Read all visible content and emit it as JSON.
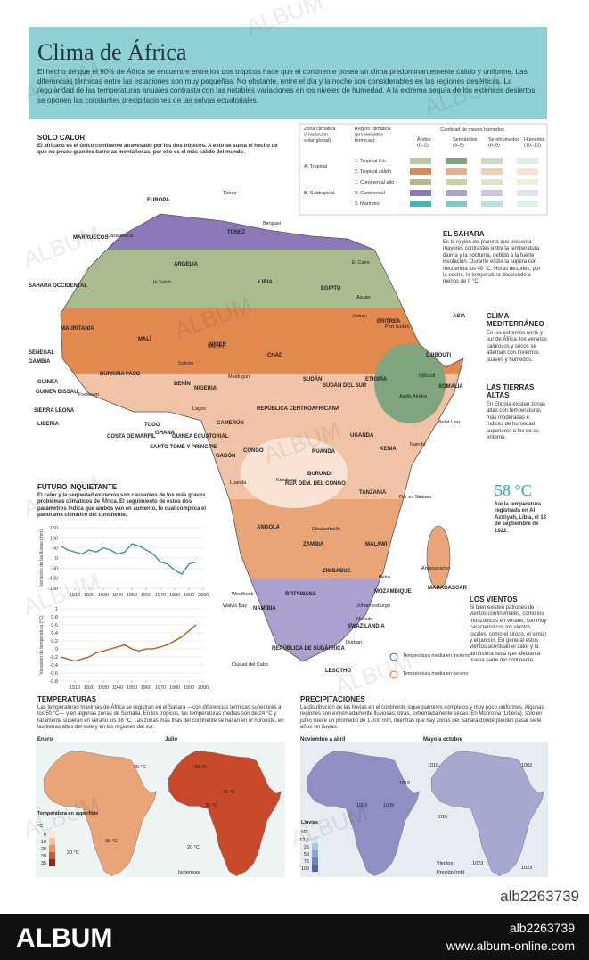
{
  "header": {
    "title": "Clima de África",
    "intro": "El hecho de que el 90% de África se encuentre entre los dos trópicos hace que el continente posea un clima predominantemente cálido y uniforme. Las diferencias térmicas entre las estaciones son muy pequeñas. No obstante, entre el día y la noche son considerables en las regiones desérticas. La regularidad de las temperaturas anuales contrasta con las notables variaciones en los niveles de humedad. A la extrema sequía de los extensos desiertos se oponen las constantes precipitaciones de las selvas ecuatoriales."
  },
  "sections": {
    "solo_calor": {
      "title": "SÓLO CALOR",
      "text": "El africano es el único continente atravesado por los dos trópicos. A esto se suma el hecho de que no posee grandes barreras montañosas, por ello es el más cálido del mundo."
    },
    "sahara": {
      "title": "EL SAHARA",
      "text": "Es la región del planeta que presenta mayores contrastes entre la temperatura diurna y la nocturna, debido a la fuerte insolación. Durante el día la supera con frecuencia los 40 °C. Horas después, por la noche, la temperatura desciende a menos de 0 °C."
    },
    "mediterraneo": {
      "title": "CLIMA MEDITERRÁNEO",
      "text": "En los extremos norte y sur de África, los veranos calurosos y secos se alternan con inviernos suaves y húmedos."
    },
    "tierras_altas": {
      "title": "LAS TIERRAS ALTAS",
      "text": "En Etiopía existen zonas altas con temperaturas más moderadas e índices de humedad superiores a los de su entorno."
    },
    "record": {
      "value": "58 °C",
      "text": "fue la temperatura registrada en Al Aziziyah, Libia, el 13 de septiembre de 1922."
    },
    "vientos": {
      "title": "LOS VIENTOS",
      "text": "Si bien existen patrones de vientos continentales, como los monzónicos en verano, son muy característicos los vientos locales, como el siroco, el simún y el jamsín. En general estos vientos acentúan el calor y la atmósfera seca que afectan a buena parte del continente."
    },
    "futuro": {
      "title": "FUTURO INQUIETANTE",
      "text": "El calor y la sequedad extremos son causantes de los más graves problemas climáticos de África. El seguimiento de estos dos parámetros indica que ambos van en aumento, lo cual complica el panorama climático del continente."
    },
    "temperaturas": {
      "title": "TEMPERATURAS",
      "text": "Las temperaturas máximas de África se registran en el Sahara —con diferencias térmicas superiores a los 50 °C— y en algunas zonas de Somalia. En los trópicos, las temperaturas medias son de 24 °C y raramente superan en verano los 38 °C. Las zonas más frías del continente se hallan en el noroeste, en las tierras altas del este y en las regiones del sur."
    },
    "precipitaciones": {
      "title": "PRECIPITACIONES",
      "text": "La distribución de las lluvias en el continente sigue patrones complejos y muy poco uniformes. Algunas regiones son extremadamente lluviosas; otras, extremadamente secas. En Monrovia (Liberia), sólo en junio llueve un promedio de 1.000 mm, mientras que hay zonas del Sahara donde pueden pasar siete años sin lluvias."
    }
  },
  "legend": {
    "col1": "Zona climática (irradiación solar global)",
    "col2": "Región climática (propiedades térmicas)",
    "group": "Cantidad de meses húmedos",
    "cols": [
      "Áridos (0–2)",
      "Semiáridos (3–5)",
      "Semihúmedos (6–9)",
      "Húmedos (10–12)"
    ],
    "zones": [
      "A. Tropical",
      "B. Subtropical"
    ],
    "rows": [
      {
        "name": "1. Tropical frío",
        "colors": [
          "#b8c9a6",
          "#7fa57f",
          "#c9dcc4",
          "#e4ede2"
        ]
      },
      {
        "name": "2. Tropical cálido",
        "colors": [
          "#e2894f",
          "#eeae84",
          "#f3cdb0",
          "#f8e3d5"
        ]
      },
      {
        "name": "1. Continental alto",
        "colors": [
          "#b7b77e",
          "#cfcf9f",
          "#e3e1c6",
          "#efeee0"
        ]
      },
      {
        "name": "2. Continental",
        "colors": [
          "#8a78b8",
          "#ad9fd0",
          "#cfc6e4",
          "#e6e1f1"
        ]
      },
      {
        "name": "3. Marítimo",
        "colors": [
          "#3fb7b3",
          "#7ccdc9",
          "#b5e3e0",
          "#dcf2f0"
        ]
      }
    ],
    "winter": "Temperatura media en invierno",
    "summer": "Temperatura media en verano"
  },
  "map_labels": [
    "EUROPA",
    "Túnez",
    "TÚNEZ",
    "Bengasi",
    "MARRUECOS",
    "Casablanca",
    "ARGELIA",
    "LIBIA",
    "EGIPTO",
    "El Cairo",
    "Asuán",
    "In Salah",
    "SAHARA OCCIDENTAL",
    "MAURITANIA",
    "MALÍ",
    "NÍGER",
    "CHAD",
    "SUDÁN",
    "ERITREA",
    "ETIOPÍA",
    "ASIA",
    "DJIBOUTI",
    "SOMALIA",
    "Port Sudán",
    "Jartum",
    "Addis Abeba",
    "SENEGAL",
    "GAMBIA",
    "GUINEA BISSAU",
    "GUINEA",
    "SIERRA LEONA",
    "LIBERIA",
    "BURKINA FASO",
    "BENÍN",
    "NIGERIA",
    "COSTA DE MARFIL",
    "TOGO",
    "GHANA",
    "CAMERÚN",
    "REPÚBLICA CENTROAFRICANA",
    "SUDÁN DEL SUR",
    "GUINEA ECUATORIAL",
    "SANTO TOMÉ Y PRÍNCIPE",
    "GABÓN",
    "CONGO",
    "UGANDA",
    "KENIA",
    "RUANDA",
    "BURUNDI",
    "REP. DEM. DEL CONGO",
    "TANZANIA",
    "Dar es Salaam",
    "ANGOLA",
    "ZAMBIA",
    "MALAWI",
    "ZIMBABUE",
    "MOZAMBIQUE",
    "NAMIBIA",
    "BOTSWANA",
    "MADAGASCAR",
    "REPÚBLICA DE SUDÁFRICA",
    "LESOTHO",
    "SWAZILANDIA",
    "Ciudad del Cabo",
    "Durban",
    "Maputo",
    "Johannesburgo",
    "Luanda",
    "Kinshasa",
    "Nairobi",
    "Lagos",
    "Freetown",
    "Sokoto",
    "Maiduguri",
    "Niamey",
    "Antananarivo",
    "Belet Uen",
    "Djibouti",
    "Windhoek",
    "Walvis Bay",
    "Beira",
    "Elisabethville"
  ],
  "charts": [
    {
      "type": "line",
      "axis_label": "Variación de las lluvias (mm)",
      "color": "#2f8f8f",
      "x": [
        1900,
        1905,
        1910,
        1915,
        1920,
        1925,
        1930,
        1935,
        1940,
        1945,
        1950,
        1955,
        1960,
        1965,
        1970,
        1975,
        1980,
        1985,
        1990,
        1995
      ],
      "values": [
        60,
        40,
        30,
        20,
        40,
        30,
        50,
        40,
        20,
        30,
        70,
        60,
        40,
        20,
        -20,
        -30,
        -60,
        -80,
        -30,
        -20
      ],
      "xlim": [
        1900,
        2000
      ],
      "ylim": [
        -150,
        150
      ],
      "yticks": [
        150,
        100,
        50,
        0,
        -50,
        -100,
        -150
      ],
      "xticks": [
        1910,
        1920,
        1930,
        1940,
        1950,
        1960,
        1970,
        1980,
        1990,
        2000
      ]
    },
    {
      "type": "line",
      "axis_label": "Variación de temperatura (°C)",
      "color": "#b0561a",
      "x": [
        1900,
        1905,
        1910,
        1915,
        1920,
        1925,
        1930,
        1935,
        1940,
        1945,
        1950,
        1955,
        1960,
        1965,
        1970,
        1975,
        1980,
        1985,
        1990,
        1995
      ],
      "values": [
        -0.2,
        -0.25,
        -0.3,
        -0.25,
        -0.2,
        -0.1,
        -0.05,
        0,
        0.05,
        0.1,
        0,
        -0.05,
        0,
        0,
        0.05,
        0.1,
        0.2,
        0.3,
        0.45,
        0.6
      ],
      "xlim": [
        1900,
        2000
      ],
      "ylim": [
        -0.8,
        1
      ],
      "yticks": [
        1,
        0.8,
        0.6,
        0.4,
        0.2,
        0,
        -0.2,
        -0.4,
        -0.6,
        -0.8
      ],
      "xticks": [
        1910,
        1920,
        1930,
        1940,
        1950,
        1960,
        1970,
        1980,
        1990,
        2000
      ]
    }
  ],
  "small_maps": {
    "enero": "Enero",
    "julio": "Julio",
    "temp_title": "Temperatura en superficie",
    "temp_unit": "°C",
    "temp_scale": [
      "0",
      "10",
      "20",
      "30",
      "35"
    ],
    "isotermas": "Isotermas",
    "iso_labels": [
      "20 °C",
      "30 °C",
      "35 °C",
      "20 °C",
      "30 °C",
      "35 °C",
      "20 °C"
    ],
    "nov": "Noviembre a abril",
    "may": "Mayo a octubre",
    "rain_title": "Lluvias",
    "rain_unit": "cm",
    "rain_scale": [
      "12,5",
      "25",
      "50",
      "75",
      "100"
    ],
    "vientos": "Vientos",
    "presion": "Presión (mb)",
    "isobars": [
      "1016",
      "1009",
      "1009",
      "1002",
      "1016",
      "1023",
      "1023",
      "1016"
    ]
  },
  "watermark": "ALBUM",
  "footer": {
    "id": "alb2263739",
    "id2": "alb2263739",
    "brand": "ALBUM",
    "url": "www.album-online.com"
  }
}
